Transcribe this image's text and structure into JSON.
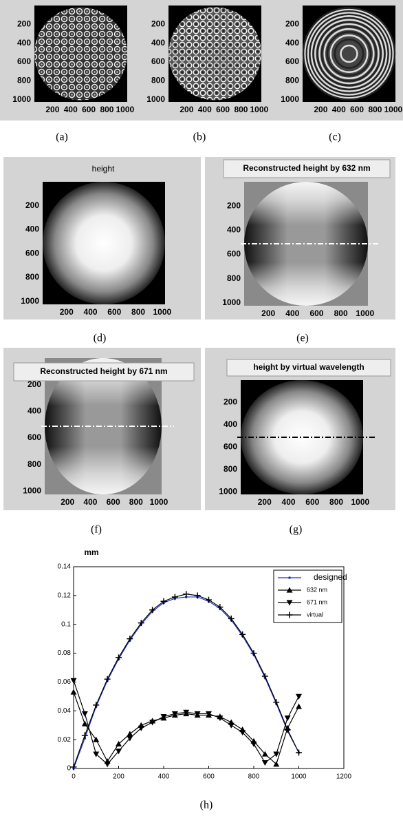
{
  "panels": [
    {
      "caption": "(a)",
      "xlim": [
        0,
        1024
      ],
      "ylim": [
        0,
        1024
      ],
      "xticks": [
        200,
        400,
        600,
        800,
        1000
      ],
      "yticks": [
        200,
        400,
        600,
        800,
        1000
      ]
    },
    {
      "caption": "(b)",
      "xlim": [
        0,
        1024
      ],
      "ylim": [
        0,
        1024
      ],
      "xticks": [
        200,
        400,
        600,
        800,
        1000
      ],
      "yticks": [
        200,
        400,
        600,
        800,
        1000
      ]
    },
    {
      "caption": "(c)",
      "xlim": [
        0,
        1024
      ],
      "ylim": [
        0,
        1024
      ],
      "xticks": [
        200,
        400,
        600,
        800,
        1000
      ],
      "yticks": [
        200,
        400,
        600,
        800,
        1000
      ]
    },
    {
      "caption": "(d)",
      "title": "height",
      "xlim": [
        0,
        1024
      ],
      "ylim": [
        0,
        1024
      ],
      "xticks": [
        200,
        400,
        600,
        800,
        1000
      ],
      "yticks": [
        200,
        400,
        600,
        800,
        1000
      ]
    },
    {
      "caption": "(e)",
      "title": "Reconstructed height by 632 nm",
      "xlim": [
        0,
        1024
      ],
      "ylim": [
        0,
        1024
      ],
      "xticks": [
        200,
        400,
        600,
        800,
        1000
      ],
      "yticks": [
        200,
        400,
        600,
        800,
        1000
      ]
    },
    {
      "caption": "(f)",
      "title": "Reconstructed height by 671 nm",
      "xlim": [
        0,
        1024
      ],
      "ylim": [
        0,
        1024
      ],
      "xticks": [
        200,
        400,
        600,
        800,
        1000
      ],
      "yticks": [
        200,
        400,
        600,
        800,
        1000
      ]
    },
    {
      "caption": "(g)",
      "title": "height by virtual wavelength",
      "xlim": [
        0,
        1024
      ],
      "ylim": [
        0,
        1024
      ],
      "xticks": [
        200,
        400,
        600,
        800,
        1000
      ],
      "yticks": [
        200,
        400,
        600,
        800,
        1000
      ]
    }
  ],
  "chart_data": {
    "type": "line",
    "caption": "(h)",
    "ylabel": "mm",
    "x": [
      0,
      50,
      100,
      150,
      200,
      250,
      300,
      350,
      400,
      450,
      500,
      550,
      600,
      650,
      700,
      750,
      800,
      850,
      900,
      950,
      1000
    ],
    "xlim": [
      0,
      1200
    ],
    "xticks": [
      0,
      200,
      400,
      600,
      800,
      1000,
      1200
    ],
    "ylim": [
      0,
      0.14
    ],
    "yticks": [
      0,
      0.02,
      0.04,
      0.06,
      0.08,
      0.1,
      0.12,
      0.14
    ],
    "legend": "upper right",
    "series": [
      {
        "name": "designed",
        "color": "#1f2fd0",
        "marker": "dot",
        "values": [
          0.0,
          0.021,
          0.043,
          0.061,
          0.076,
          0.089,
          0.1,
          0.109,
          0.115,
          0.118,
          0.119,
          0.119,
          0.116,
          0.111,
          0.103,
          0.092,
          0.079,
          0.063,
          0.045,
          0.026,
          0.011
        ]
      },
      {
        "name": "632 nm",
        "color": "#000000",
        "marker": "triangle-up",
        "values": [
          0.053,
          0.031,
          0.02,
          0.005,
          0.017,
          0.024,
          0.03,
          0.033,
          0.035,
          0.037,
          0.038,
          0.037,
          0.037,
          0.036,
          0.032,
          0.027,
          0.019,
          0.01,
          0.003,
          0.028,
          0.043
        ]
      },
      {
        "name": "671 nm",
        "color": "#000000",
        "marker": "triangle-down",
        "values": [
          0.061,
          0.038,
          0.01,
          0.003,
          0.012,
          0.021,
          0.028,
          0.032,
          0.036,
          0.038,
          0.039,
          0.038,
          0.038,
          0.035,
          0.03,
          0.025,
          0.017,
          0.004,
          0.01,
          0.035,
          0.05
        ]
      },
      {
        "name": "virtual",
        "color": "#000000",
        "marker": "plus",
        "values": [
          0.001,
          0.023,
          0.044,
          0.062,
          0.077,
          0.09,
          0.101,
          0.11,
          0.116,
          0.119,
          0.121,
          0.12,
          0.117,
          0.112,
          0.104,
          0.093,
          0.08,
          0.064,
          0.046,
          0.027,
          0.011
        ]
      }
    ]
  }
}
